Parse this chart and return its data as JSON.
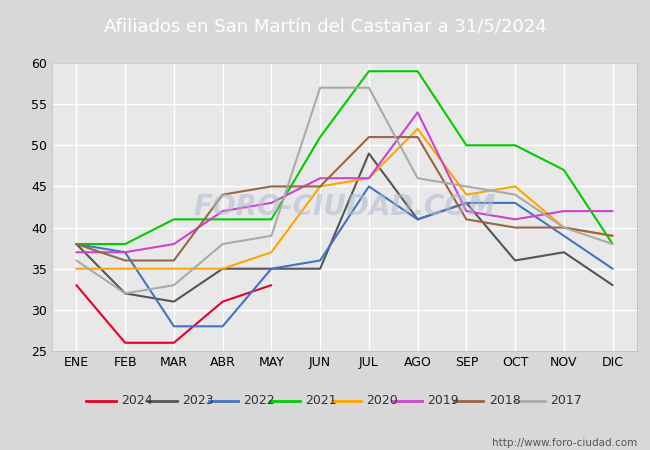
{
  "title": "Afiliados en San Martín del Castañar a 31/5/2024",
  "title_color": "#ffffff",
  "title_bg_color": "#4472c4",
  "months": [
    "ENE",
    "FEB",
    "MAR",
    "ABR",
    "MAY",
    "JUN",
    "JUL",
    "AGO",
    "SEP",
    "OCT",
    "NOV",
    "DIC"
  ],
  "ylim": [
    25,
    60
  ],
  "yticks": [
    25,
    30,
    35,
    40,
    45,
    50,
    55,
    60
  ],
  "series_order": [
    "2024",
    "2023",
    "2022",
    "2021",
    "2020",
    "2019",
    "2018",
    "2017"
  ],
  "series": {
    "2024": {
      "color": "#e8002a",
      "data": [
        33,
        26,
        26,
        31,
        33,
        null,
        null,
        null,
        null,
        null,
        null,
        null
      ]
    },
    "2023": {
      "color": "#555555",
      "data": [
        38,
        32,
        31,
        35,
        35,
        35,
        49,
        41,
        43,
        36,
        37,
        33
      ]
    },
    "2022": {
      "color": "#4472c4",
      "data": [
        38,
        37,
        28,
        28,
        35,
        36,
        45,
        41,
        43,
        43,
        39,
        35
      ]
    },
    "2021": {
      "color": "#00cc00",
      "data": [
        38,
        38,
        41,
        41,
        41,
        51,
        59,
        59,
        50,
        50,
        47,
        38
      ]
    },
    "2020": {
      "color": "#ffa500",
      "data": [
        35,
        35,
        35,
        35,
        37,
        45,
        46,
        52,
        44,
        45,
        40,
        39
      ]
    },
    "2019": {
      "color": "#cc44cc",
      "data": [
        37,
        37,
        38,
        42,
        43,
        46,
        46,
        54,
        42,
        41,
        42,
        42
      ]
    },
    "2018": {
      "color": "#996644",
      "data": [
        38,
        36,
        36,
        44,
        45,
        45,
        51,
        51,
        41,
        40,
        40,
        39
      ]
    },
    "2017": {
      "color": "#aaaaaa",
      "data": [
        36,
        32,
        33,
        38,
        39,
        57,
        57,
        46,
        45,
        44,
        40,
        38
      ]
    }
  },
  "watermark": "FORO-CIUDAD.COM",
  "url": "http://www.foro-ciudad.com",
  "outer_bg_color": "#d8d8d8",
  "plot_bg_color": "#e8e8e8",
  "grid_color": "#ffffff"
}
